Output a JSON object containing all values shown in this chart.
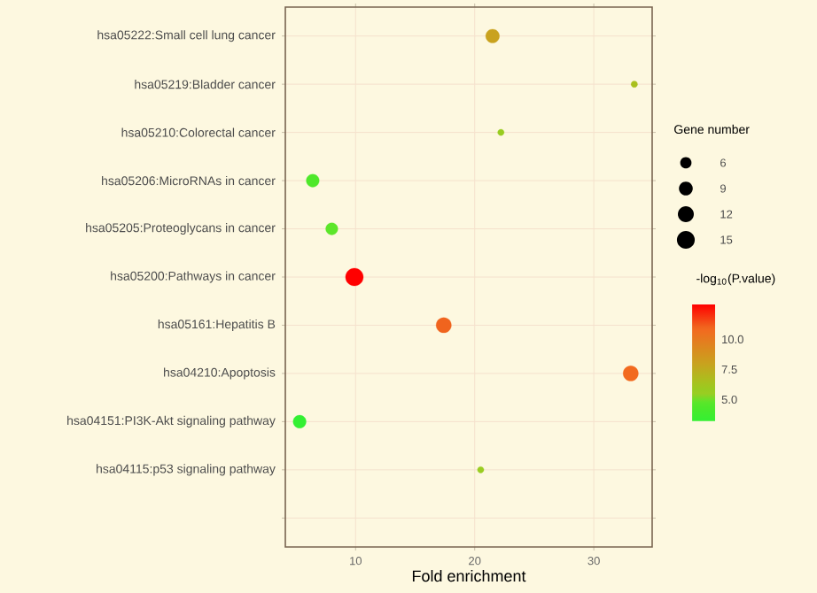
{
  "chart_data": {
    "type": "bubble",
    "xlabel": "Fold enrichment",
    "legend_title": "Gene number",
    "clabel": "-log$_{10}$(P.value)",
    "categories": [
      "hsa05222:Small cell lung cancer",
      "hsa05219:Bladder cancer",
      "hsa05210:Colorectal cancer",
      "hsa05206:MicroRNAs in cancer",
      "hsa05205:Proteoglycans in cancer",
      "hsa05200:Pathways in cancer",
      "hsa05161:Hepatitis B",
      "hsa04210:Apoptosis",
      "hsa04151:PI3K-Akt signaling pathway",
      "hsa04115:p53 signaling pathway",
      null
    ],
    "values": [
      21.5,
      33.4,
      22.2,
      6.4,
      8.0,
      9.9,
      17.4,
      33.1,
      5.3,
      20.5,
      null
    ],
    "sizes": [
      9,
      2,
      2,
      8,
      7,
      15,
      11,
      11,
      8,
      2,
      null
    ],
    "size_legend": [
      6,
      9,
      12,
      15
    ],
    "cvalues": [
      8.0,
      6.5,
      5.8,
      4.4,
      4.8,
      12.9,
      11.0,
      10.8,
      3.2,
      5.5,
      null
    ],
    "colors": [
      "#c9a21e",
      "#a9c01e",
      "#98cc20",
      "#4ee82a",
      "#5ce62a",
      "#ff0000",
      "#f0641e",
      "#f26a1f",
      "#33f033",
      "#9acd22",
      null
    ],
    "clim": [
      3.2,
      12.9
    ],
    "cticks": [
      {
        "value": 5,
        "label": "5.0"
      },
      {
        "value": 7.5,
        "label": "7.5"
      },
      {
        "value": 10,
        "label": "10.0"
      }
    ],
    "xlim": [
      4.1,
      34.9
    ],
    "xticks": [
      10,
      20,
      30
    ],
    "grid": true,
    "orientation": "horizontal"
  }
}
